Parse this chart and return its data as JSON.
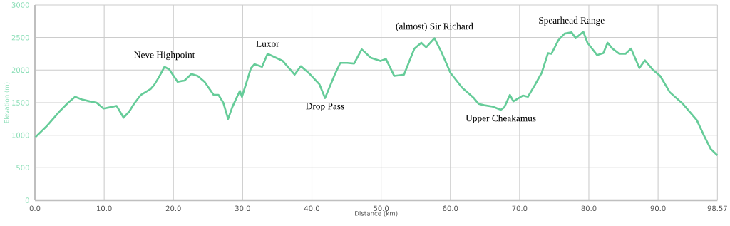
{
  "chart_data": {
    "type": "line",
    "xlabel": "Distance (km)",
    "ylabel": "Elevation (m)",
    "x": [
      0.07,
      1.8,
      3.5,
      4.8,
      5.8,
      6.8,
      7.9,
      8.9,
      9.9,
      10.9,
      11.8,
      12.8,
      13.6,
      14.3,
      15.3,
      16.7,
      17.2,
      17.9,
      18.7,
      19.4,
      20.6,
      21.6,
      22.6,
      23.5,
      24.5,
      25.8,
      26.5,
      27.2,
      27.9,
      28.5,
      29.1,
      29.6,
      29.9,
      31.2,
      31.7,
      32.8,
      33.6,
      35.8,
      37.5,
      38.4,
      39.7,
      41.1,
      41.9,
      43.3,
      44.1,
      45.1,
      46.1,
      47.2,
      48.5,
      49.9,
      50.7,
      51.9,
      53.3,
      54.8,
      55.8,
      56.5,
      57.7,
      58.7,
      60.0,
      61.7,
      63.4,
      64.1,
      64.9,
      66.1,
      67.3,
      67.8,
      68.6,
      69.1,
      70.5,
      71.2,
      72.2,
      73.2,
      74.1,
      74.6,
      75.6,
      76.5,
      77.5,
      78.1,
      79.2,
      79.8,
      81.2,
      82.1,
      82.7,
      83.4,
      84.4,
      85.3,
      86.1,
      87.3,
      88.1,
      89.2,
      90.3,
      91.7,
      93.6,
      95.6,
      96.6,
      97.6,
      98.57
    ],
    "series": [
      {
        "color": "#66cc99",
        "values": [
          970,
          1150,
          1360,
          1500,
          1590,
          1550,
          1520,
          1500,
          1410,
          1430,
          1450,
          1270,
          1360,
          1480,
          1620,
          1710,
          1770,
          1890,
          2050,
          2010,
          1820,
          1840,
          1940,
          1910,
          1820,
          1620,
          1620,
          1500,
          1250,
          1430,
          1570,
          1680,
          1590,
          2030,
          2090,
          2050,
          2250,
          2140,
          1930,
          2060,
          1940,
          1780,
          1570,
          1930,
          2110,
          2110,
          2100,
          2320,
          2190,
          2140,
          2170,
          1910,
          1930,
          2330,
          2420,
          2350,
          2490,
          2280,
          1960,
          1730,
          1570,
          1480,
          1460,
          1440,
          1390,
          1430,
          1620,
          1520,
          1610,
          1590,
          1770,
          1960,
          2260,
          2250,
          2460,
          2560,
          2580,
          2490,
          2590,
          2420,
          2230,
          2260,
          2420,
          2330,
          2250,
          2250,
          2330,
          2030,
          2150,
          2010,
          1910,
          1660,
          1480,
          1230,
          1000,
          790,
          690
        ]
      }
    ],
    "xlim": [
      0,
      98.57
    ],
    "xticks": [
      {
        "value": 0,
        "label": "0.0"
      },
      {
        "value": 10,
        "label": "10.0"
      },
      {
        "value": 20,
        "label": "20.0"
      },
      {
        "value": 30,
        "label": "30.0"
      },
      {
        "value": 40,
        "label": "40.0"
      },
      {
        "value": 50,
        "label": "50.0"
      },
      {
        "value": 60,
        "label": "60.0"
      },
      {
        "value": 70,
        "label": "70.0"
      },
      {
        "value": 80,
        "label": "80.0"
      },
      {
        "value": 90,
        "label": "90.0"
      },
      {
        "value": 98.57,
        "label": "98.57"
      }
    ],
    "ylim": [
      0,
      3000
    ],
    "yticks": [
      0,
      500,
      1000,
      1500,
      2000,
      2500,
      3000
    ],
    "grid": true,
    "marker": "none",
    "line_style": "solid",
    "annotations": [
      {
        "text": "Neve Highpoint",
        "x": 18.7,
        "y": 2050
      },
      {
        "text": "Luxor",
        "x": 33.6,
        "y": 2250
      },
      {
        "text": "Drop Pass",
        "x": 41.9,
        "y": 1570
      },
      {
        "text": "(almost) Sir Richard",
        "x": 57.7,
        "y": 2490
      },
      {
        "text": "Upper Cheakamus",
        "x": 67.3,
        "y": 1390
      },
      {
        "text": "Spearhead Range",
        "x": 77.5,
        "y": 2580
      }
    ]
  }
}
